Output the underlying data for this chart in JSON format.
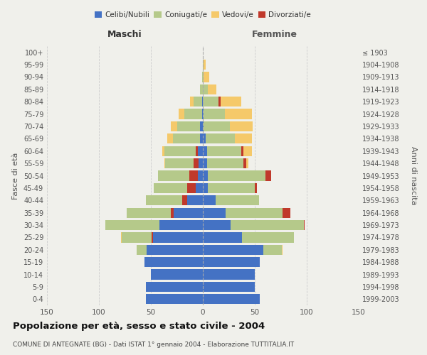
{
  "age_groups": [
    "0-4",
    "5-9",
    "10-14",
    "15-19",
    "20-24",
    "25-29",
    "30-34",
    "35-39",
    "40-44",
    "45-49",
    "50-54",
    "55-59",
    "60-64",
    "65-69",
    "70-74",
    "75-79",
    "80-84",
    "85-89",
    "90-94",
    "95-99",
    "100+"
  ],
  "birth_years": [
    "1999-2003",
    "1994-1998",
    "1989-1993",
    "1984-1988",
    "1979-1983",
    "1974-1978",
    "1969-1973",
    "1964-1968",
    "1959-1963",
    "1954-1958",
    "1949-1953",
    "1944-1948",
    "1939-1943",
    "1934-1938",
    "1929-1933",
    "1924-1928",
    "1919-1923",
    "1914-1918",
    "1909-1913",
    "1904-1908",
    "≤ 1903"
  ],
  "males": {
    "celibi": [
      55,
      55,
      50,
      56,
      54,
      48,
      42,
      28,
      15,
      7,
      5,
      4,
      5,
      3,
      3,
      1,
      1,
      0,
      0,
      0,
      0
    ],
    "coniugati": [
      0,
      0,
      0,
      0,
      10,
      30,
      52,
      45,
      40,
      40,
      38,
      32,
      32,
      26,
      22,
      17,
      8,
      3,
      1,
      0,
      0
    ],
    "vedovi": [
      0,
      0,
      0,
      0,
      0,
      1,
      0,
      0,
      0,
      0,
      0,
      1,
      2,
      5,
      6,
      5,
      3,
      0,
      0,
      0,
      0
    ],
    "divorziati": [
      0,
      0,
      0,
      0,
      0,
      1,
      0,
      3,
      5,
      8,
      8,
      5,
      2,
      0,
      0,
      0,
      0,
      0,
      0,
      0,
      0
    ]
  },
  "females": {
    "nubili": [
      55,
      50,
      50,
      55,
      58,
      38,
      27,
      22,
      12,
      5,
      5,
      4,
      4,
      3,
      1,
      1,
      0,
      0,
      0,
      0,
      0
    ],
    "coniugate": [
      0,
      0,
      0,
      0,
      18,
      50,
      70,
      55,
      42,
      45,
      55,
      35,
      33,
      28,
      25,
      20,
      15,
      5,
      1,
      1,
      0
    ],
    "vedove": [
      0,
      0,
      0,
      0,
      1,
      0,
      1,
      0,
      0,
      2,
      4,
      5,
      10,
      16,
      22,
      26,
      22,
      8,
      5,
      2,
      0
    ],
    "divorziate": [
      0,
      0,
      0,
      0,
      0,
      0,
      1,
      7,
      0,
      2,
      6,
      3,
      2,
      0,
      0,
      0,
      2,
      0,
      0,
      0,
      0
    ]
  },
  "colors": {
    "celibi": "#4472c4",
    "coniugati": "#b5c98a",
    "vedovi": "#f5c96a",
    "divorziati": "#c0392b"
  },
  "title": "Popolazione per età, sesso e stato civile - 2004",
  "subtitle": "COMUNE DI ANTEGNATE (BG) - Dati ISTAT 1° gennaio 2004 - Elaborazione TUTTITALIA.IT",
  "xlabel_left": "Maschi",
  "xlabel_right": "Femmine",
  "ylabel_left": "Fasce di età",
  "ylabel_right": "Anni di nascita",
  "xlim": 150,
  "bg_color": "#f0f0eb",
  "grid_color": "#cccccc"
}
